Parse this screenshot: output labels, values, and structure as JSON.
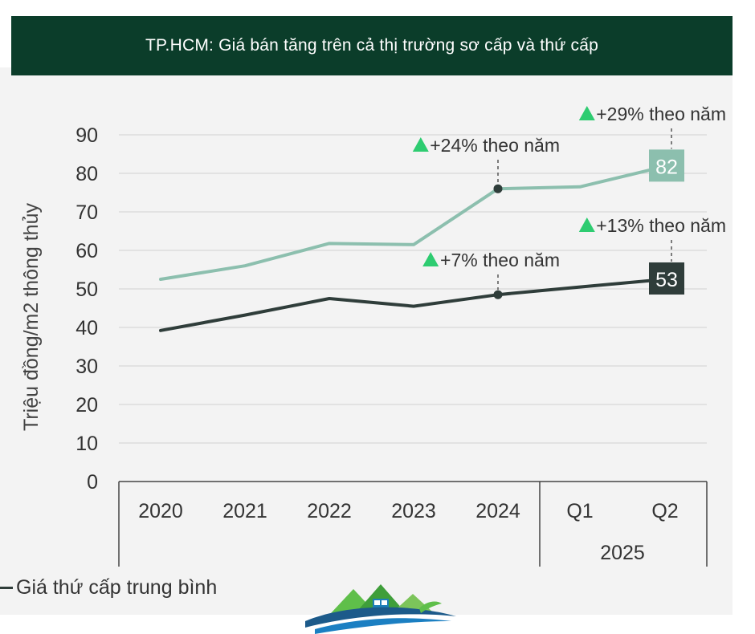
{
  "header": {
    "title": "TP.HCM: Giá bán tăng trên cả thị trường sơ cấp và thứ cấp"
  },
  "legend": {
    "secondary_label": "Giá thứ cấp trung bình"
  },
  "colors": {
    "primary_series": "#8cbfae",
    "secondary_series": "#2f3d3a",
    "header_bg": "#0b3d2a",
    "up_arrow": "#2ecc71"
  },
  "chart_data": {
    "type": "line",
    "ylabel": "Triệu đồng/m2 thông thủy",
    "ylim": [
      0,
      90
    ],
    "yticks": [
      0,
      10,
      20,
      30,
      40,
      50,
      60,
      70,
      80,
      90
    ],
    "categories": [
      "2020",
      "2021",
      "2022",
      "2023",
      "2024",
      "Q1",
      "Q2"
    ],
    "category_group": {
      "label": "2025",
      "members": [
        "Q1",
        "Q2"
      ]
    },
    "grid": true,
    "series": [
      {
        "key": "primary",
        "values": [
          52.5,
          56,
          61.8,
          61.5,
          76,
          76.5,
          81.8
        ],
        "end_label": "82",
        "annotations": [
          {
            "category": "2024",
            "text": "+24% theo năm"
          },
          {
            "category": "Q2",
            "text": "+29% theo năm"
          }
        ]
      },
      {
        "key": "secondary",
        "name": "Giá thứ cấp trung bình",
        "values": [
          39.2,
          43.2,
          47.5,
          45.5,
          48.5,
          50.5,
          52.5
        ],
        "end_label": "53",
        "annotations": [
          {
            "category": "2024",
            "text": "+7% theo năm"
          },
          {
            "category": "Q2",
            "text": "+13% theo năm"
          }
        ]
      }
    ]
  }
}
